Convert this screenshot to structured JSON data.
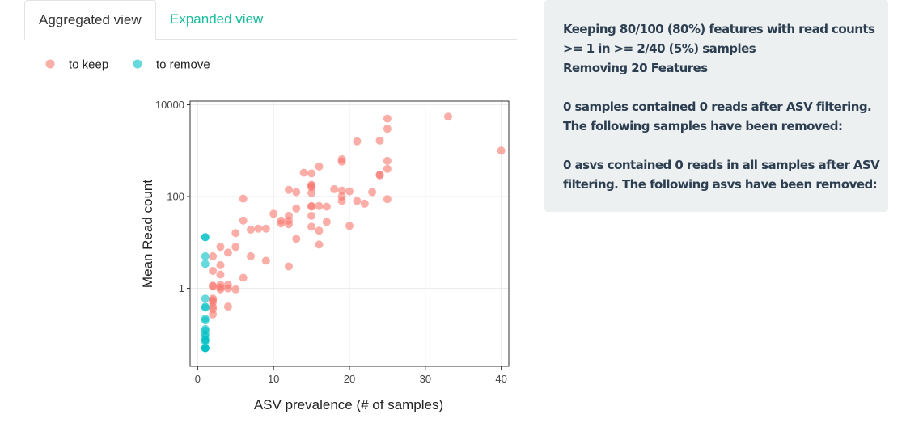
{
  "tabs": {
    "aggregated": "Aggregated view",
    "expanded": "Expanded view"
  },
  "colors": {
    "keep": "#f8766d",
    "remove": "#00bfc4",
    "accent": "#18bc9c",
    "panel_bg": "#ecf0f1",
    "panel_text": "#2c3e50"
  },
  "info_panel": {
    "paragraph1": [
      "Keeping 80/100 (80%) features with read counts",
      ">= 1 in >= 2/40 (5%) samples",
      "Removing 20 Features"
    ],
    "paragraph2": [
      "0 samples contained 0 reads after ASV filtering.",
      "The following samples have been removed:"
    ],
    "paragraph3": [
      "0 asvs contained 0 reads in all samples after ASV",
      "filtering. The following asvs have been removed:"
    ]
  },
  "chart_data": {
    "type": "scatter",
    "xlabel": "ASV prevalence (# of samples)",
    "ylabel": "Mean Read count",
    "x_ticks": [
      0,
      10,
      20,
      30,
      40
    ],
    "y_ticks": [
      1,
      100,
      10000
    ],
    "y_tick_labels": [
      "1",
      "100",
      "10000"
    ],
    "y_scale": "log10",
    "xlim": [
      -1,
      41
    ],
    "ylim": [
      0.02,
      12000
    ],
    "grid": true,
    "legend_position": "top-left",
    "series": [
      {
        "name": "to keep",
        "color": "#f8766d",
        "points": [
          [
            33,
            5500
          ],
          [
            40,
            1000
          ],
          [
            25,
            5000
          ],
          [
            25,
            3000
          ],
          [
            24,
            1650
          ],
          [
            21,
            1600
          ],
          [
            25,
            600
          ],
          [
            25,
            400
          ],
          [
            24,
            300
          ],
          [
            24,
            290
          ],
          [
            19,
            650
          ],
          [
            19,
            580
          ],
          [
            16,
            450
          ],
          [
            14,
            330
          ],
          [
            15,
            320
          ],
          [
            15,
            170
          ],
          [
            15,
            180
          ],
          [
            15,
            160
          ],
          [
            12,
            140
          ],
          [
            13,
            125
          ],
          [
            18,
            145
          ],
          [
            19,
            135
          ],
          [
            20,
            130
          ],
          [
            23,
            125
          ],
          [
            19,
            100
          ],
          [
            19,
            80
          ],
          [
            21,
            80
          ],
          [
            22,
            70
          ],
          [
            25,
            88
          ],
          [
            15,
            120
          ],
          [
            6,
            90
          ],
          [
            15,
            60
          ],
          [
            15,
            62
          ],
          [
            16,
            62
          ],
          [
            17,
            60
          ],
          [
            13,
            55
          ],
          [
            10,
            42
          ],
          [
            12,
            38
          ],
          [
            11,
            30
          ],
          [
            12,
            30
          ],
          [
            15,
            38
          ],
          [
            11,
            26
          ],
          [
            6,
            30
          ],
          [
            12,
            25
          ],
          [
            17,
            28
          ],
          [
            20,
            23
          ],
          [
            15,
            22
          ],
          [
            16,
            18
          ],
          [
            7,
            19
          ],
          [
            8,
            20
          ],
          [
            5,
            16
          ],
          [
            9,
            20
          ],
          [
            13,
            12
          ],
          [
            16,
            9
          ],
          [
            3,
            8
          ],
          [
            5,
            8
          ],
          [
            4,
            6
          ],
          [
            7,
            5
          ],
          [
            2,
            5
          ],
          [
            9,
            4
          ],
          [
            3,
            3.2
          ],
          [
            12,
            3
          ],
          [
            2,
            2.4
          ],
          [
            6,
            1.7
          ],
          [
            3,
            2
          ],
          [
            2,
            1.15
          ],
          [
            3,
            1.2
          ],
          [
            3,
            1.05
          ],
          [
            4,
            1.2
          ],
          [
            4,
            1.0
          ],
          [
            5,
            0.95
          ],
          [
            2,
            1.1
          ],
          [
            3,
            0.95
          ],
          [
            2,
            0.6
          ],
          [
            2,
            0.55
          ],
          [
            2,
            0.5
          ],
          [
            4,
            0.4
          ],
          [
            2,
            0.35
          ],
          [
            2,
            0.27
          ],
          [
            2,
            0.4
          ]
        ]
      },
      {
        "name": "to remove",
        "color": "#00bfc4",
        "points": [
          [
            1,
            13
          ],
          [
            1,
            13
          ],
          [
            1,
            5
          ],
          [
            1,
            3.4
          ],
          [
            1,
            0.6
          ],
          [
            1,
            0.4
          ],
          [
            1,
            0.38
          ],
          [
            1,
            0.22
          ],
          [
            1,
            0.2
          ],
          [
            1,
            0.13
          ],
          [
            1,
            0.12
          ],
          [
            1,
            0.1
          ],
          [
            1,
            0.09
          ],
          [
            1,
            0.075
          ],
          [
            1,
            0.075
          ],
          [
            1,
            0.07
          ],
          [
            1,
            0.05
          ],
          [
            1,
            0.05
          ],
          [
            1,
            0.05
          ],
          [
            1,
            0.05
          ]
        ]
      }
    ]
  }
}
